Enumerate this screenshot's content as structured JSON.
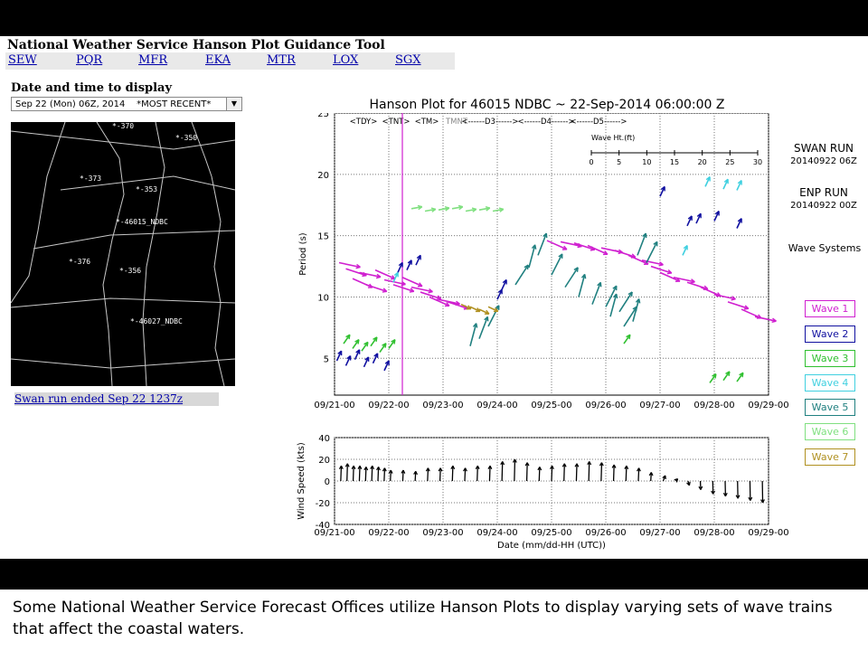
{
  "header": {
    "title": "National Weather Service Hanson Plot Guidance Tool",
    "offices": [
      "SEW",
      "PQR",
      "MFR",
      "EKA",
      "MTR",
      "LOX",
      "SGX"
    ]
  },
  "datetime": {
    "label": "Date and time to display",
    "selected": "Sep 22 (Mon) 06Z, 2014    *MOST RECENT*"
  },
  "map": {
    "stations": [
      {
        "label": "*-370"
      },
      {
        "label": "*-350"
      },
      {
        "label": "*-373"
      },
      {
        "label": "*-353"
      },
      {
        "label": "*-46015_NDBC"
      },
      {
        "label": "*-376"
      },
      {
        "label": "*-356"
      },
      {
        "label": "*-46027_NDBC"
      }
    ],
    "swan_link": "Swan run ended Sep 22 1237z"
  },
  "chart_data": [
    {
      "type": "scatter",
      "title": "Hanson Plot for 46015 NDBC ~ 22-Sep-2014 06:00:00 Z",
      "xlabel": "",
      "ylabel": "Period (s)",
      "ylim": [
        2,
        25
      ],
      "yticks": [
        5,
        10,
        15,
        20,
        25
      ],
      "x_ticks": [
        "09/21-00",
        "09/22-00",
        "09/23-00",
        "09/24-00",
        "09/25-00",
        "09/26-00",
        "09/27-00",
        "09/28-00",
        "09/29-00"
      ],
      "xlim_hours": [
        0,
        192
      ],
      "day_labels": [
        "<TDY>",
        "<TNT>",
        "<TM>",
        "TMNT",
        "<------D3------>",
        "<------D4------>",
        "<------D5------>"
      ],
      "now_line_hour": 30,
      "wave_height_scale": {
        "label": "Wave Ht.(ft)",
        "ticks": [
          "0",
          "5",
          "10",
          "15",
          "20",
          "25",
          "30"
        ]
      },
      "grid": true,
      "series": [
        {
          "name": "Wave 1",
          "color": "#d020d0",
          "points": [
            [
              2,
              12.8
            ],
            [
              5,
              12.3
            ],
            [
              8,
              11.5
            ],
            [
              11,
              12.0
            ],
            [
              14,
              11.0
            ],
            [
              18,
              12.2
            ],
            [
              22,
              11.4
            ],
            [
              26,
              11.0
            ],
            [
              30,
              11.6
            ],
            [
              34,
              10.8
            ],
            [
              38,
              10.4
            ],
            [
              42,
              10.0
            ],
            [
              46,
              9.8
            ],
            [
              50,
              9.6
            ],
            [
              94,
              14.6
            ],
            [
              100,
              14.5
            ],
            [
              106,
              14.4
            ],
            [
              112,
              14.2
            ],
            [
              118,
              14.0
            ],
            [
              124,
              13.8
            ],
            [
              130,
              13.4
            ],
            [
              136,
              13.0
            ],
            [
              140,
              12.5
            ],
            [
              144,
              12.0
            ],
            [
              150,
              11.6
            ],
            [
              156,
              11.2
            ],
            [
              162,
              10.8
            ],
            [
              168,
              10.2
            ],
            [
              174,
              9.6
            ],
            [
              180,
              9.0
            ],
            [
              186,
              8.4
            ]
          ]
        },
        {
          "name": "Wave 2",
          "color": "#1010a0",
          "points": [
            [
              1,
              4.8
            ],
            [
              5,
              4.4
            ],
            [
              9,
              4.9
            ],
            [
              13,
              4.3
            ],
            [
              17,
              4.6
            ],
            [
              22,
              4.0
            ],
            [
              28,
              12.0
            ],
            [
              32,
              12.2
            ],
            [
              36,
              12.6
            ],
            [
              72,
              9.8
            ],
            [
              74,
              10.6
            ],
            [
              144,
              18.2
            ],
            [
              156,
              15.8
            ],
            [
              160,
              16.0
            ],
            [
              168,
              16.2
            ],
            [
              178,
              15.6
            ]
          ]
        },
        {
          "name": "Wave 3",
          "color": "#30c030",
          "points": [
            [
              4,
              6.2
            ],
            [
              8,
              5.8
            ],
            [
              12,
              5.6
            ],
            [
              16,
              6.0
            ],
            [
              20,
              5.5
            ],
            [
              24,
              5.8
            ],
            [
              128,
              6.2
            ],
            [
              166,
              3.0
            ],
            [
              172,
              3.2
            ],
            [
              178,
              3.1
            ]
          ]
        },
        {
          "name": "Wave 4",
          "color": "#40d0e0",
          "points": [
            [
              26,
              11.2
            ],
            [
              154,
              13.4
            ],
            [
              164,
              19.0
            ],
            [
              172,
              18.8
            ],
            [
              178,
              18.7
            ]
          ]
        },
        {
          "name": "Wave 5",
          "color": "#208080",
          "points": [
            [
              60,
              6.0
            ],
            [
              64,
              6.6
            ],
            [
              68,
              7.6
            ],
            [
              80,
              11.0
            ],
            [
              86,
              12.4
            ],
            [
              90,
              13.4
            ],
            [
              96,
              11.8
            ],
            [
              102,
              10.8
            ],
            [
              108,
              10.0
            ],
            [
              114,
              9.4
            ],
            [
              120,
              9.2
            ],
            [
              126,
              8.8
            ],
            [
              132,
              8.0
            ],
            [
              134,
              13.4
            ],
            [
              138,
              12.8
            ],
            [
              128,
              7.6
            ],
            [
              122,
              8.4
            ]
          ]
        },
        {
          "name": "Wave 6",
          "color": "#80e080",
          "points": [
            [
              34,
              17.2
            ],
            [
              40,
              17.0
            ],
            [
              46,
              17.1
            ],
            [
              52,
              17.2
            ],
            [
              58,
              17.0
            ],
            [
              64,
              17.1
            ],
            [
              70,
              17.0
            ]
          ]
        },
        {
          "name": "Wave 7",
          "color": "#b09020",
          "points": [
            [
              56,
              9.4
            ],
            [
              60,
              9.2
            ],
            [
              64,
              9.0
            ],
            [
              68,
              9.2
            ]
          ]
        }
      ]
    },
    {
      "type": "bar",
      "title": "",
      "xlabel": "Date (mm/dd-HH (UTC))",
      "ylabel": "Wind Speed (kts)",
      "ylim": [
        -40,
        40
      ],
      "yticks": [
        -40,
        -20,
        0,
        20,
        40
      ],
      "x_ticks": [
        "09/21-00",
        "09/22-00",
        "09/23-00",
        "09/24-00",
        "09/25-00",
        "09/26-00",
        "09/27-00",
        "09/28-00",
        "09/29-00"
      ],
      "grid": true,
      "series": [
        {
          "name": "",
          "points": [
            [
              3,
              14
            ],
            [
              6,
              16
            ],
            [
              9,
              14
            ],
            [
              12,
              14
            ],
            [
              15,
              13
            ],
            [
              18,
              14
            ],
            [
              21,
              13
            ],
            [
              24,
              12
            ],
            [
              27,
              10
            ],
            [
              33,
              10
            ],
            [
              39,
              9
            ],
            [
              45,
              12
            ],
            [
              51,
              12
            ],
            [
              57,
              14
            ],
            [
              63,
              12
            ],
            [
              69,
              14
            ],
            [
              75,
              14
            ],
            [
              81,
              18
            ],
            [
              87,
              20
            ],
            [
              93,
              17
            ],
            [
              99,
              13
            ],
            [
              105,
              14
            ],
            [
              111,
              16
            ],
            [
              117,
              16
            ],
            [
              123,
              18
            ],
            [
              129,
              17
            ],
            [
              135,
              15
            ],
            [
              141,
              14
            ],
            [
              147,
              12
            ],
            [
              153,
              8
            ],
            [
              159,
              5
            ],
            [
              165,
              2
            ],
            [
              171,
              -4
            ],
            [
              177,
              -8
            ],
            [
              183,
              -12
            ],
            [
              189,
              -14
            ],
            [
              195,
              -16
            ],
            [
              201,
              -18
            ],
            [
              207,
              -20
            ]
          ]
        }
      ]
    }
  ],
  "side": {
    "swan_run_label": "SWAN RUN",
    "swan_run_time": "20140922 06Z",
    "enp_run_label": "ENP RUN",
    "enp_run_time": "20140922 00Z",
    "wave_systems_label": "Wave Systems"
  },
  "caption": "Some National Weather Service Forecast Offices utilize Hanson Plots to display varying sets of wave trains that affect the coastal waters."
}
